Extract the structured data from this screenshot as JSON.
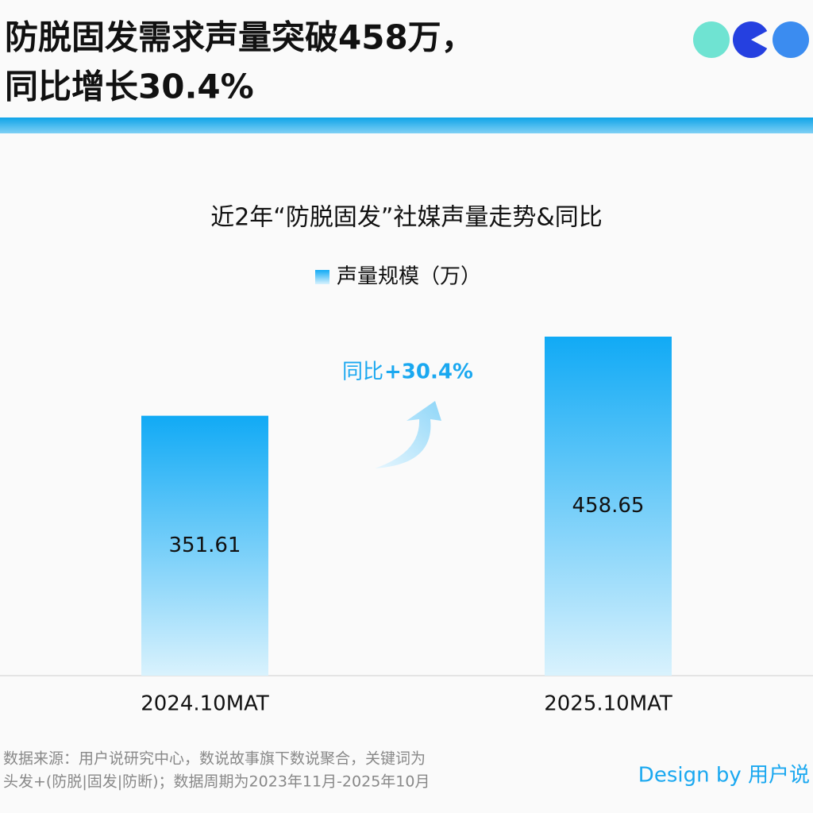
{
  "header": {
    "title_lines": [
      "防脱固发需求声量突破458万，",
      "同比增长30.4%"
    ]
  },
  "chart_data": {
    "type": "bar",
    "title": "近2年“防脱固发”社媒声量走势&同比",
    "categories": [
      "2024.10MAT",
      "2025.10MAT"
    ],
    "series": [
      {
        "name": "声量规模（万）",
        "color": "#11aaf5",
        "values": [
          351.61,
          458.65
        ]
      }
    ],
    "annotation": [
      "同比",
      "+30.4%"
    ]
  },
  "footer": {
    "source_lines": [
      "数据来源：用户说研究中心，数说故事旗下数说聚合，关键词为",
      "头发+(防脱|固发|防断)；数据周期为2023年11月-2025年10月"
    ],
    "credit": "Design by 用户说"
  }
}
